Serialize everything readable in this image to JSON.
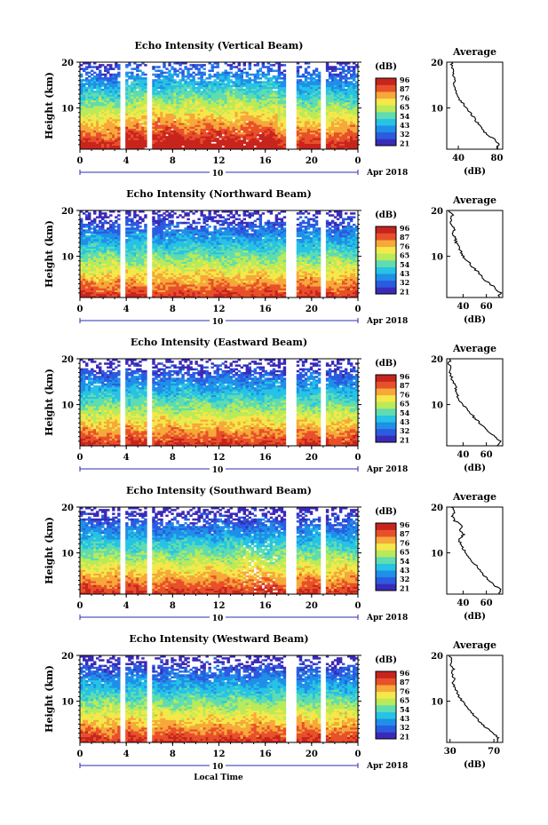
{
  "chart_data": {
    "type": "heatmap",
    "x_ticks": [
      "0",
      "4",
      "8",
      "12",
      "16",
      "20",
      "0"
    ],
    "x_range_hours": [
      0,
      24
    ],
    "date_day": "10",
    "date_month_year": "Apr 2018",
    "xlabel": "Local Time",
    "ylabel": "Height (km)",
    "y_ticks": [
      "20",
      "10"
    ],
    "y_range_km": [
      1,
      20
    ],
    "colorbar_unit": "(dB)",
    "colorscale": [
      "#3a2ab8",
      "#2b5be0",
      "#1f8fe8",
      "#27c3e4",
      "#5fdcb0",
      "#b9ea5a",
      "#f4e84a",
      "#f6a83a",
      "#e8502a",
      "#c8241e"
    ],
    "data_gaps_hours": [
      [
        3.4,
        3.9
      ],
      [
        5.8,
        6.2
      ],
      [
        17.8,
        18.6
      ],
      [
        20.8,
        21.2
      ]
    ],
    "panels": [
      {
        "title": "Echo Intensity (Vertical Beam)",
        "colorbar_ticks": [
          "96",
          "87",
          "76",
          "65",
          "54",
          "43",
          "32",
          "21"
        ],
        "average": {
          "title": "Average",
          "xlabel": "(dB)",
          "x_ticks": [
            "40",
            "80"
          ],
          "x_range": [
            28,
            86
          ],
          "heights_km": [
            1,
            2,
            3,
            4,
            5,
            6,
            7,
            8,
            9,
            10,
            11,
            12,
            13,
            14,
            15,
            16,
            17,
            18,
            19,
            20
          ],
          "values_db": [
            80,
            82,
            79,
            71,
            66,
            63,
            59,
            56,
            52,
            48,
            45,
            40,
            39,
            36,
            35,
            37,
            34,
            36,
            33,
            33
          ]
        }
      },
      {
        "title": "Echo Intensity (Northward Beam)",
        "colorbar_ticks": [
          "96",
          "87",
          "76",
          "65",
          "54",
          "43",
          "32",
          "21"
        ],
        "average": {
          "title": "Average",
          "xlabel": "(dB)",
          "x_ticks": [
            "40",
            "60"
          ],
          "x_range": [
            26,
            74
          ],
          "heights_km": [
            1,
            2,
            3,
            4,
            5,
            6,
            7,
            8,
            9,
            10,
            11,
            12,
            13,
            14,
            15,
            16,
            17,
            18,
            19,
            20
          ],
          "values_db": [
            70,
            72,
            68,
            63,
            58,
            55,
            51,
            47,
            44,
            40,
            38,
            36,
            34,
            33,
            31,
            33,
            30,
            29,
            31,
            28
          ]
        }
      },
      {
        "title": "Echo Intensity (Eastward Beam)",
        "colorbar_ticks": [
          "96",
          "87",
          "76",
          "65",
          "54",
          "43",
          "32",
          "21"
        ],
        "average": {
          "title": "Average",
          "xlabel": "(dB)",
          "x_ticks": [
            "40",
            "60"
          ],
          "x_range": [
            26,
            74
          ],
          "heights_km": [
            1,
            2,
            3,
            4,
            5,
            6,
            7,
            8,
            9,
            10,
            11,
            12,
            13,
            14,
            15,
            16,
            17,
            18,
            19,
            20
          ],
          "values_db": [
            70,
            73,
            67,
            62,
            58,
            54,
            50,
            47,
            44,
            40,
            37,
            35,
            33,
            34,
            31,
            30,
            29,
            30,
            28,
            29
          ]
        }
      },
      {
        "title": "Echo Intensity (Southward Beam)",
        "colorbar_ticks": [
          "96",
          "87",
          "76",
          "65",
          "54",
          "43",
          "32",
          "21"
        ],
        "average": {
          "title": "Average",
          "xlabel": "(dB)",
          "x_ticks": [
            "40",
            "60"
          ],
          "x_range": [
            26,
            74
          ],
          "heights_km": [
            1,
            2,
            3,
            4,
            5,
            6,
            7,
            8,
            9,
            10,
            11,
            12,
            13,
            14,
            15,
            16,
            17,
            18,
            19,
            20
          ],
          "values_db": [
            71,
            72,
            66,
            62,
            58,
            55,
            52,
            48,
            45,
            42,
            40,
            38,
            36,
            41,
            37,
            39,
            33,
            31,
            33,
            30
          ]
        }
      },
      {
        "title": "Echo Intensity (Westward Beam)",
        "colorbar_ticks": [
          "96",
          "87",
          "76",
          "65",
          "54",
          "43",
          "32",
          "21"
        ],
        "average": {
          "title": "Average",
          "xlabel": "(dB)",
          "x_ticks": [
            "30",
            "70"
          ],
          "x_range": [
            27,
            78
          ],
          "heights_km": [
            1,
            2,
            3,
            4,
            5,
            6,
            7,
            8,
            9,
            10,
            11,
            12,
            13,
            14,
            15,
            16,
            17,
            18,
            19,
            20
          ],
          "values_db": [
            73,
            74,
            69,
            64,
            59,
            55,
            51,
            48,
            45,
            41,
            38,
            36,
            35,
            32,
            34,
            31,
            33,
            30,
            32,
            29
          ]
        }
      }
    ]
  }
}
